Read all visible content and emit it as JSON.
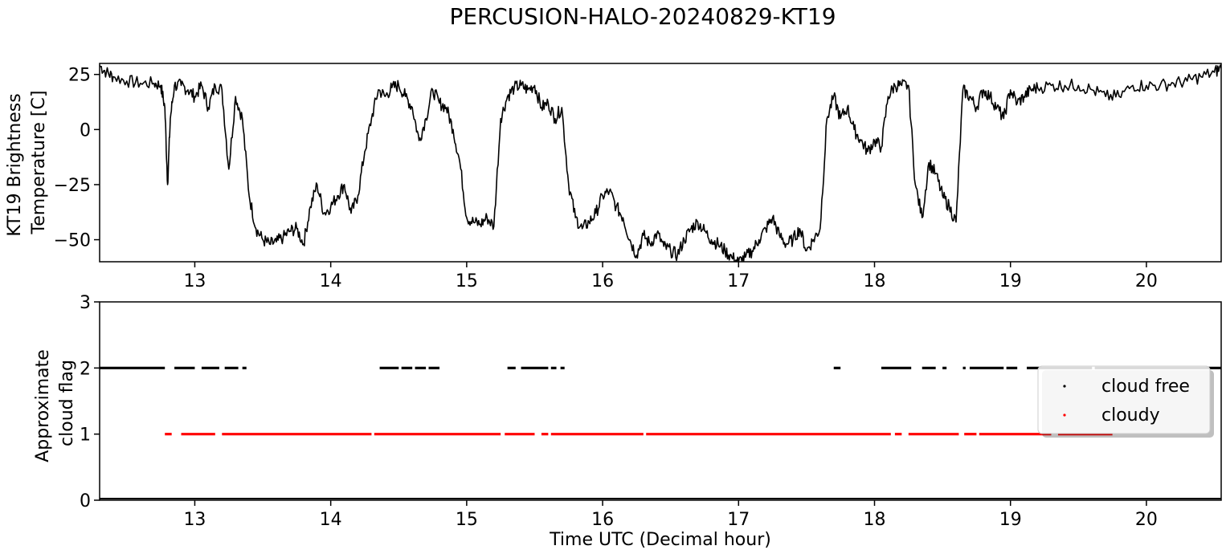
{
  "chart_data": {
    "title": "PERCUSION-HALO-20240829-KT19",
    "panels": [
      {
        "type": "line",
        "ylabel_lines": [
          "KT19 Brightness",
          "Temperature [C]"
        ],
        "xlim": [
          12.3,
          20.55
        ],
        "ylim": [
          -60,
          30
        ],
        "xticks": [
          13,
          14,
          15,
          16,
          17,
          18,
          19,
          20
        ],
        "yticks": [
          25,
          0,
          -25,
          -50
        ],
        "line_color": "#000000",
        "series": [
          {
            "x": [
              12.3,
              12.35,
              12.4,
              12.5,
              12.6,
              12.7,
              12.75,
              12.78,
              12.8,
              12.82,
              12.85,
              12.9,
              12.95,
              13.0,
              13.05,
              13.1,
              13.15,
              13.2,
              13.25,
              13.3,
              13.35,
              13.4,
              13.45,
              13.5,
              13.55,
              13.6,
              13.65,
              13.7,
              13.75,
              13.8,
              13.85,
              13.9,
              13.95,
              14.0,
              14.05,
              14.1,
              14.15,
              14.2,
              14.25,
              14.3,
              14.35,
              14.4,
              14.45,
              14.5,
              14.55,
              14.6,
              14.65,
              14.7,
              14.75,
              14.8,
              14.85,
              14.9,
              14.95,
              15.0,
              15.05,
              15.1,
              15.15,
              15.2,
              15.25,
              15.3,
              15.35,
              15.4,
              15.45,
              15.5,
              15.55,
              15.6,
              15.65,
              15.7,
              15.75,
              15.8,
              15.85,
              15.9,
              15.95,
              16.0,
              16.05,
              16.1,
              16.15,
              16.2,
              16.25,
              16.3,
              16.35,
              16.4,
              16.45,
              16.5,
              16.55,
              16.6,
              16.65,
              16.7,
              16.75,
              16.8,
              16.85,
              16.9,
              16.95,
              17.0,
              17.05,
              17.1,
              17.15,
              17.2,
              17.25,
              17.3,
              17.35,
              17.4,
              17.45,
              17.5,
              17.55,
              17.6,
              17.65,
              17.7,
              17.75,
              17.8,
              17.85,
              17.9,
              17.95,
              18.0,
              18.05,
              18.1,
              18.15,
              18.2,
              18.25,
              18.3,
              18.35,
              18.4,
              18.45,
              18.5,
              18.55,
              18.6,
              18.65,
              18.7,
              18.75,
              18.8,
              18.85,
              18.9,
              18.95,
              19.0,
              19.05,
              19.1,
              19.15,
              19.2,
              19.3,
              19.4,
              19.5,
              19.6,
              19.7,
              19.8,
              19.9,
              20.0,
              20.1,
              20.2,
              20.3,
              20.4,
              20.5,
              20.55
            ],
            "y": [
              29,
              26,
              24,
              22,
              21,
              21,
              20,
              10,
              -25,
              5,
              20,
              20,
              18,
              15,
              20,
              10,
              20,
              18,
              -18,
              15,
              5,
              -30,
              -45,
              -50,
              -52,
              -51,
              -49,
              -46,
              -45,
              -52,
              -35,
              -25,
              -38,
              -35,
              -30,
              -25,
              -38,
              -30,
              -10,
              5,
              18,
              15,
              19,
              20,
              15,
              10,
              -5,
              5,
              18,
              12,
              10,
              0,
              -15,
              -40,
              -42,
              -43,
              -40,
              -44,
              5,
              15,
              19,
              20,
              18,
              20,
              10,
              12,
              5,
              10,
              -25,
              -40,
              -45,
              -42,
              -38,
              -30,
              -28,
              -35,
              -40,
              -50,
              -57,
              -48,
              -52,
              -47,
              -53,
              -55,
              -57,
              -50,
              -45,
              -42,
              -46,
              -50,
              -52,
              -55,
              -58,
              -60,
              -58,
              -55,
              -50,
              -45,
              -40,
              -48,
              -52,
              -50,
              -45,
              -55,
              -50,
              -45,
              5,
              15,
              5,
              10,
              0,
              -5,
              -10,
              -5,
              -8,
              15,
              20,
              20,
              20,
              -25,
              -40,
              -15,
              -20,
              -30,
              -35,
              -42,
              18,
              15,
              10,
              18,
              15,
              10,
              5,
              18,
              12,
              15,
              18,
              19,
              20,
              20,
              20,
              18,
              15,
              15,
              20,
              20,
              20,
              21,
              22,
              24,
              26,
              28
            ]
          }
        ]
      },
      {
        "type": "scatter",
        "ylabel_lines": [
          "Approximate",
          "cloud flag"
        ],
        "xlabel": "Time UTC (Decimal hour)",
        "xlim": [
          12.3,
          20.55
        ],
        "ylim": [
          0,
          3
        ],
        "xticks": [
          13,
          14,
          15,
          16,
          17,
          18,
          19,
          20
        ],
        "yticks": [
          3,
          2,
          1,
          0
        ],
        "legend_position": "right",
        "series": [
          {
            "name": "cloud free",
            "color": "#000000",
            "y_value": 2,
            "segments": [
              [
                12.3,
                12.78
              ],
              [
                12.85,
                13.0
              ],
              [
                13.05,
                13.18
              ],
              [
                13.22,
                13.32
              ],
              [
                13.35,
                13.38
              ],
              [
                14.36,
                14.5
              ],
              [
                14.52,
                14.6
              ],
              [
                14.62,
                14.7
              ],
              [
                14.72,
                14.8
              ],
              [
                15.3,
                15.36
              ],
              [
                15.4,
                15.6
              ],
              [
                15.62,
                15.66
              ],
              [
                15.69,
                15.72
              ],
              [
                17.7,
                17.75
              ],
              [
                18.05,
                18.27
              ],
              [
                18.35,
                18.45
              ],
              [
                18.5,
                18.53
              ],
              [
                18.65,
                18.67
              ],
              [
                18.7,
                18.95
              ],
              [
                18.97,
                19.05
              ],
              [
                19.12,
                19.6
              ],
              [
                19.62,
                20.55
              ]
            ]
          },
          {
            "name": "cloudy",
            "color": "#ff0000",
            "y_value": 1,
            "segments": [
              [
                12.78,
                12.83
              ],
              [
                12.9,
                13.15
              ],
              [
                13.2,
                14.3
              ],
              [
                14.32,
                15.25
              ],
              [
                15.28,
                15.5
              ],
              [
                15.55,
                15.6
              ],
              [
                15.62,
                16.3
              ],
              [
                16.32,
                18.12
              ],
              [
                18.15,
                18.2
              ],
              [
                18.25,
                18.62
              ],
              [
                18.66,
                18.75
              ],
              [
                18.77,
                19.3
              ],
              [
                19.35,
                19.75
              ]
            ]
          }
        ]
      }
    ]
  }
}
